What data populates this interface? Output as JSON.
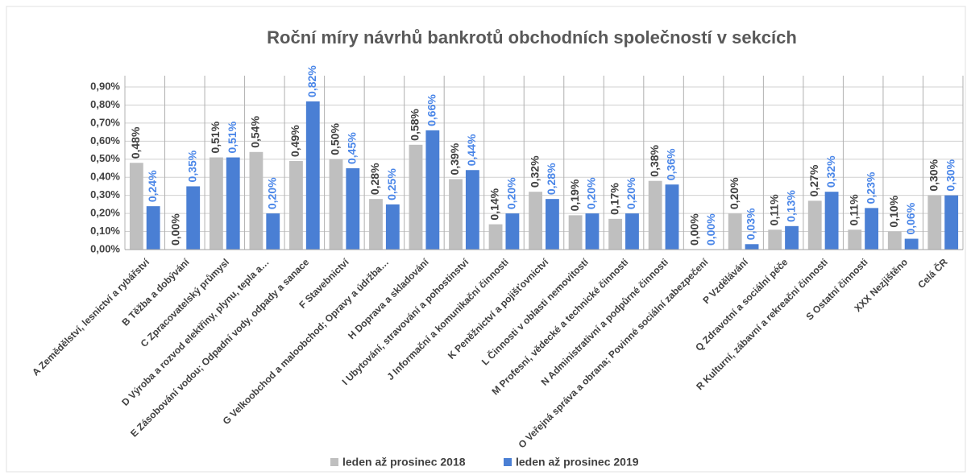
{
  "chart_data": {
    "type": "bar",
    "title": "Roční míry návrhů bankrotů obchodních společností v sekcích",
    "categories": [
      "A Zemědělství, lesnictví a rybářství",
      "B Těžba a dobývání",
      "C Zpracovatelský průmysl",
      "D Výroba a rozvod elektřiny, plynu, tepla a…",
      "E Zásobování vodou; Odpadní vody, odpady a sanace",
      "F Stavebnictví",
      "G Velkoobchod a maloobchod; Opravy a údržba…",
      "H Doprava a skladování",
      "I Ubytování, stravování a pohostinství",
      "J Informační a komunikační činnosti",
      "K Peněžnictví a pojišťovnictví",
      "L Činnosti v oblasti nemovitostí",
      "M Profesní, vědecké a technické činnosti",
      "N Administrativní a podpůrné činnosti",
      "O Veřejná správa a obrana; Povinné sociální zabezpečení",
      "P Vzdělávání",
      "Q Zdravotní a sociální péče",
      "R Kulturní, zábavní a rekreační činnosti",
      "S Ostatní činnosti",
      "XXX Nezjištěno",
      "Celá ČR"
    ],
    "series": [
      {
        "name": "leden až prosinec 2018",
        "color": "#bfbfbf",
        "label_color": "#404040",
        "values": [
          0.48,
          0.0,
          0.51,
          0.54,
          0.49,
          0.5,
          0.28,
          0.58,
          0.39,
          0.14,
          0.32,
          0.19,
          0.17,
          0.38,
          0.0,
          0.2,
          0.11,
          0.27,
          0.11,
          0.1,
          0.3
        ],
        "value_labels": [
          "0,48%",
          "0,00%",
          "0,51%",
          "0,54%",
          "0,49%",
          "0,50%",
          "0,28%",
          "0,58%",
          "0,39%",
          "0,14%",
          "0,32%",
          "0,19%",
          "0,17%",
          "0,38%",
          "0,00%",
          "0,20%",
          "0,11%",
          "0,27%",
          "0,11%",
          "0,10%",
          "0,30%"
        ]
      },
      {
        "name": "leden až prosinec 2019",
        "color": "#4a7fd4",
        "label_color": "#4a86e8",
        "values": [
          0.24,
          0.35,
          0.51,
          0.2,
          0.82,
          0.45,
          0.25,
          0.66,
          0.44,
          0.2,
          0.28,
          0.2,
          0.2,
          0.36,
          0.0,
          0.03,
          0.13,
          0.32,
          0.23,
          0.06,
          0.3
        ],
        "value_labels": [
          "0,24%",
          "0,35%",
          "0,51%",
          "0,20%",
          "0,82%",
          "0,45%",
          "0,25%",
          "0,66%",
          "0,44%",
          "0,20%",
          "0,28%",
          "0,20%",
          "0,20%",
          "0,36%",
          "0,00%",
          "0,03%",
          "0,13%",
          "0,32%",
          "0,23%",
          "0,06%",
          "0,30%"
        ]
      }
    ],
    "ylim": [
      0,
      0.9
    ],
    "yticks": [
      {
        "value": 0,
        "label": "0,00%"
      },
      {
        "value": 0.1,
        "label": "0,10%"
      },
      {
        "value": 0.2,
        "label": "0,20%"
      },
      {
        "value": 0.3,
        "label": "0,30%"
      },
      {
        "value": 0.4,
        "label": "0,40%"
      },
      {
        "value": 0.5,
        "label": "0,50%"
      },
      {
        "value": 0.6,
        "label": "0,60%"
      },
      {
        "value": 0.7,
        "label": "0,70%"
      },
      {
        "value": 0.8,
        "label": "0,80%"
      },
      {
        "value": 0.9,
        "label": "0,90%"
      }
    ],
    "grid": true,
    "legend": "bottom"
  }
}
